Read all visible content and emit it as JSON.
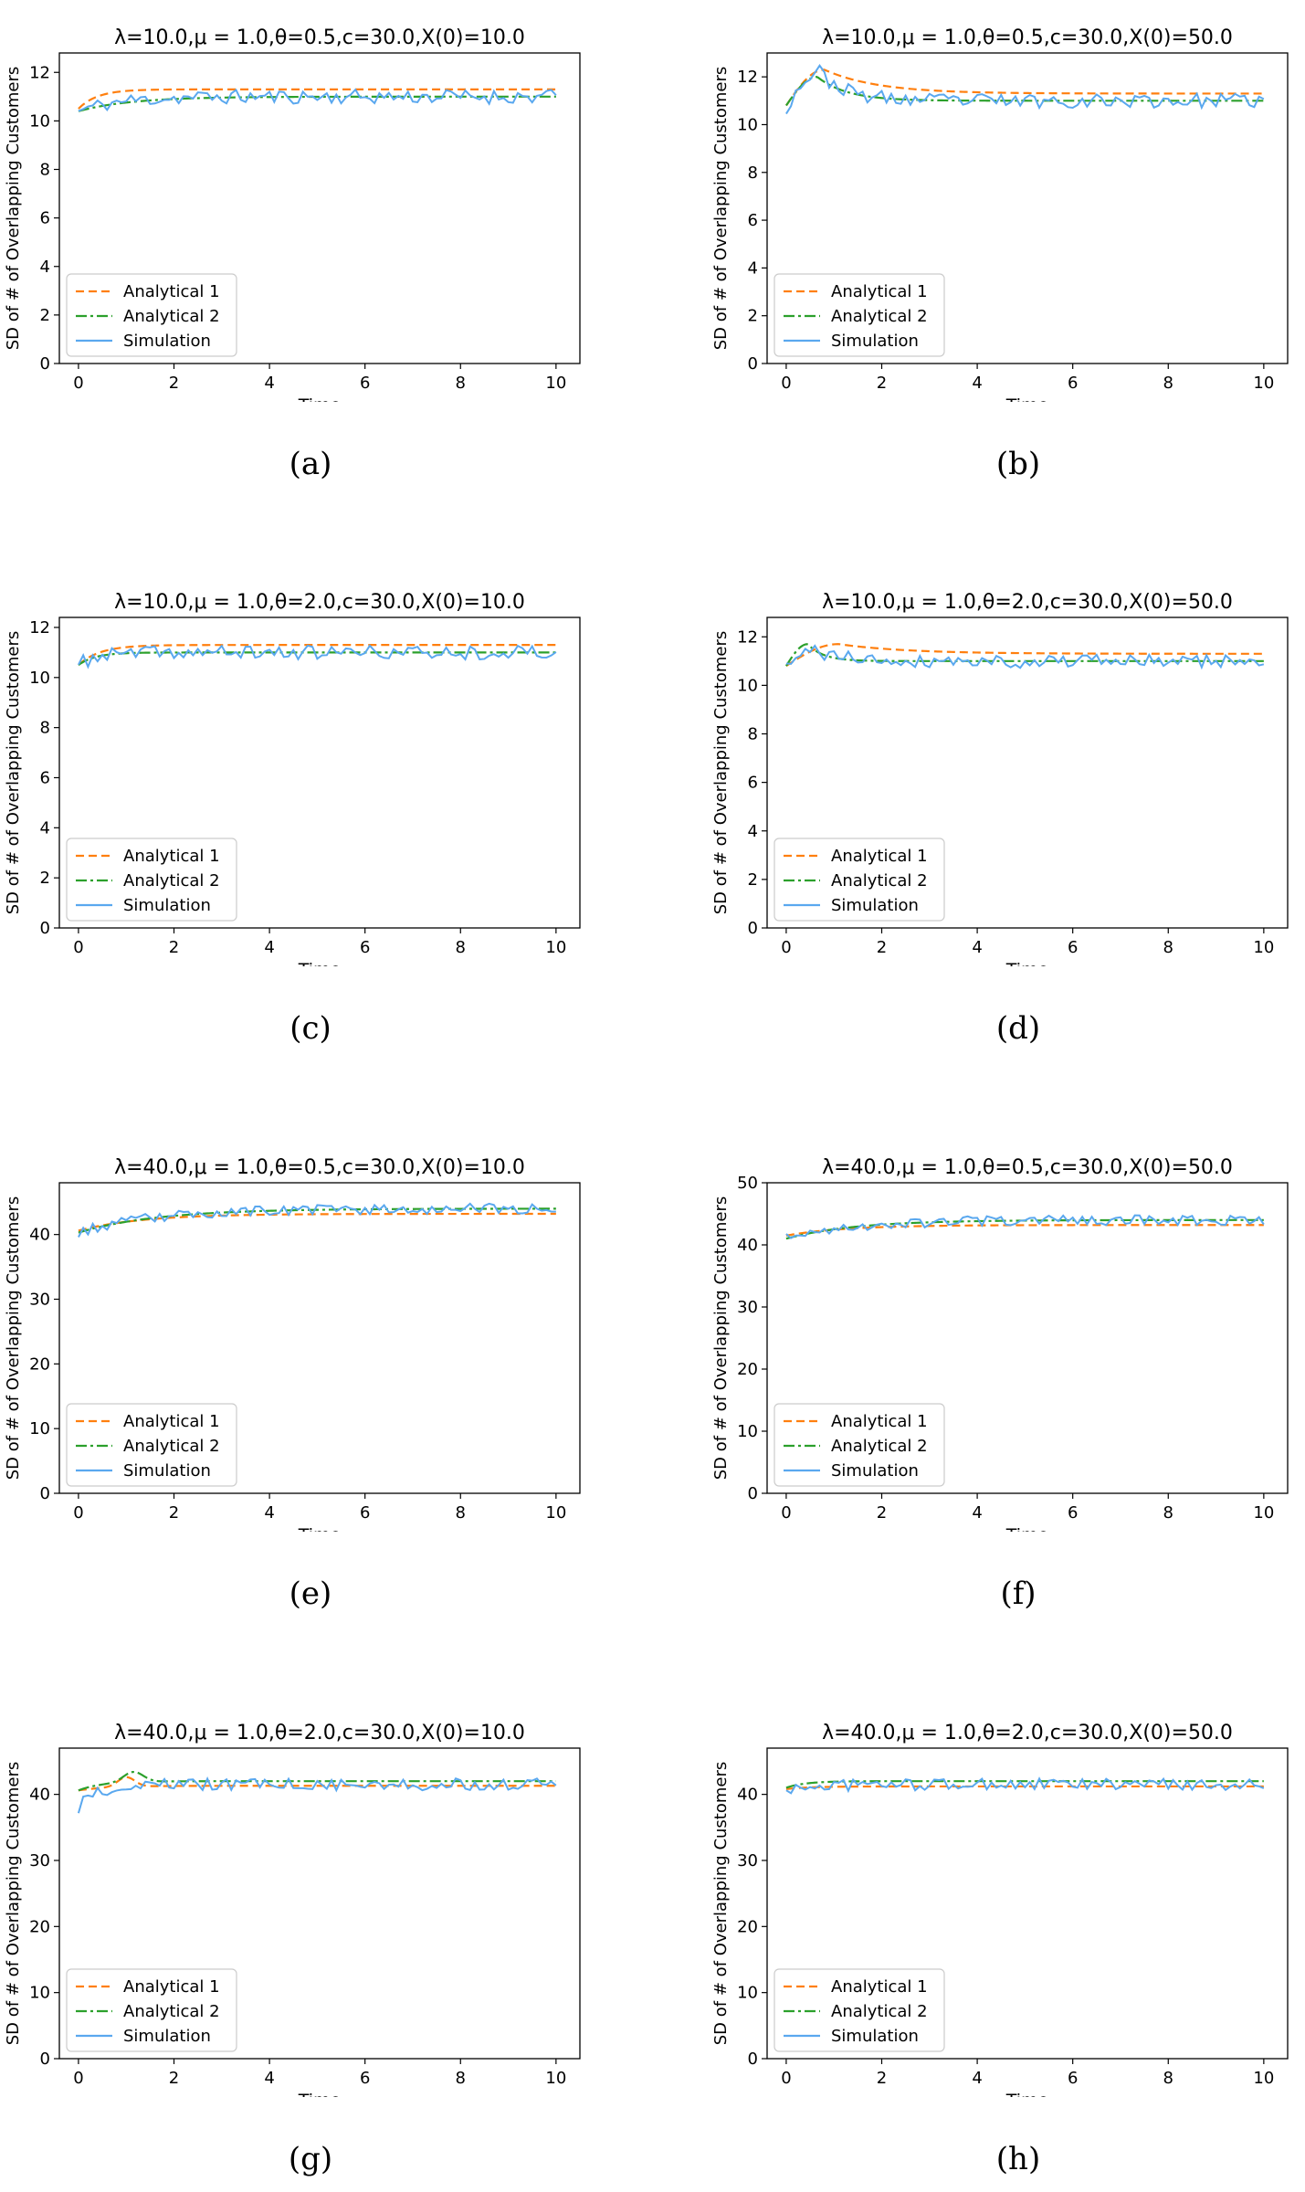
{
  "colors": {
    "analytical1": "#ff7f0e",
    "analytical2": "#2ca02c",
    "simulation": "#5aa8ef",
    "frame": "#000000"
  },
  "chart_data": [
    {
      "type": "line",
      "caption": "(a)",
      "title": "λ=10.0,μ = 1.0,θ=0.5,c=30.0,X(0)=10.0",
      "xlabel": "Time",
      "ylabel": "SD of # of Overlapping Customers",
      "xlim": [
        -0.4,
        10.5
      ],
      "ylim": [
        0,
        12.8
      ],
      "xticks": [
        0,
        2,
        4,
        6,
        8,
        10
      ],
      "yticks": [
        0,
        2,
        4,
        6,
        8,
        10,
        12
      ],
      "grid": false,
      "legend": "lower-left",
      "series": [
        {
          "name": "Analytical 1",
          "style": "dashed",
          "start": 10.5,
          "end": 11.3,
          "rate": 2.5
        },
        {
          "name": "Analytical 2",
          "style": "dashdot",
          "start": 10.4,
          "end": 11.0,
          "rate": 0.9
        },
        {
          "name": "Simulation",
          "style": "solid",
          "start": 10.4,
          "end": 11.0,
          "rate": 1.2,
          "noise": 0.3,
          "seed": 11
        }
      ]
    },
    {
      "type": "line",
      "caption": "(b)",
      "title": "λ=10.0,μ = 1.0,θ=0.5,c=30.0,X(0)=50.0",
      "xlabel": "Time",
      "ylabel": "SD of # of Overlapping Customers",
      "xlim": [
        -0.4,
        10.5
      ],
      "ylim": [
        0,
        13.0
      ],
      "xticks": [
        0,
        2,
        4,
        6,
        8,
        10
      ],
      "yticks": [
        0,
        2,
        4,
        6,
        8,
        10,
        12
      ],
      "grid": false,
      "legend": "lower-left",
      "series": [
        {
          "name": "Analytical 1",
          "style": "dashed",
          "start": 10.8,
          "end": 11.3,
          "peak_t": 0.8,
          "peak_v": 12.3,
          "decay": 0.9
        },
        {
          "name": "Analytical 2",
          "style": "dashdot",
          "start": 10.8,
          "end": 11.0,
          "peak_t": 0.65,
          "peak_v": 12.0,
          "decay": 1.6
        },
        {
          "name": "Simulation",
          "style": "solid",
          "start": 10.7,
          "end": 11.0,
          "peak_t": 0.7,
          "peak_v": 12.2,
          "decay": 1.8,
          "noise": 0.3,
          "seed": 23
        }
      ]
    },
    {
      "type": "line",
      "caption": "(c)",
      "title": "λ=10.0,μ = 1.0,θ=2.0,c=30.0,X(0)=10.0",
      "xlabel": "Time",
      "ylabel": "SD of # of Overlapping Customers",
      "xlim": [
        -0.4,
        10.5
      ],
      "ylim": [
        0,
        12.4
      ],
      "xticks": [
        0,
        2,
        4,
        6,
        8,
        10
      ],
      "yticks": [
        0,
        2,
        4,
        6,
        8,
        10,
        12
      ],
      "grid": false,
      "legend": "lower-left",
      "series": [
        {
          "name": "Analytical 1",
          "style": "dashed",
          "start": 10.5,
          "end": 11.3,
          "rate": 2.2
        },
        {
          "name": "Analytical 2",
          "style": "dashdot",
          "start": 10.5,
          "end": 11.0,
          "rate": 2.8
        },
        {
          "name": "Simulation",
          "style": "solid",
          "start": 10.5,
          "end": 11.0,
          "rate": 2.5,
          "noise": 0.28,
          "seed": 37
        }
      ]
    },
    {
      "type": "line",
      "caption": "(d)",
      "title": "λ=10.0,μ = 1.0,θ=2.0,c=30.0,X(0)=50.0",
      "xlabel": "Time",
      "ylabel": "SD of # of Overlapping Customers",
      "xlim": [
        -0.4,
        10.5
      ],
      "ylim": [
        0,
        12.8
      ],
      "xticks": [
        0,
        2,
        4,
        6,
        8,
        10
      ],
      "yticks": [
        0,
        2,
        4,
        6,
        8,
        10,
        12
      ],
      "grid": false,
      "legend": "lower-left",
      "series": [
        {
          "name": "Analytical 1",
          "style": "dashed",
          "start": 10.8,
          "end": 11.3,
          "peak_t": 1.1,
          "peak_v": 11.7,
          "decay": 0.7
        },
        {
          "name": "Analytical 2",
          "style": "dashdot",
          "start": 10.8,
          "end": 11.0,
          "peak_t": 0.45,
          "peak_v": 11.7,
          "decay": 3.0
        },
        {
          "name": "Simulation",
          "style": "solid",
          "start": 10.7,
          "end": 11.0,
          "peak_t": 0.6,
          "peak_v": 11.4,
          "decay": 1.5,
          "noise": 0.28,
          "seed": 41
        }
      ]
    },
    {
      "type": "line",
      "caption": "(e)",
      "title": "λ=40.0,μ = 1.0,θ=0.5,c=30.0,X(0)=10.0",
      "xlabel": "Time",
      "ylabel": "SD of # of Overlapping Customers",
      "xlim": [
        -0.4,
        10.5
      ],
      "ylim": [
        0,
        48.0
      ],
      "xticks": [
        0,
        2,
        4,
        6,
        8,
        10
      ],
      "yticks": [
        0,
        10,
        20,
        30,
        40
      ],
      "grid": false,
      "legend": "lower-left",
      "series": [
        {
          "name": "Analytical 1",
          "style": "dashed",
          "start": 40.6,
          "end": 43.2,
          "rate": 0.75
        },
        {
          "name": "Analytical 2",
          "style": "dashdot",
          "start": 40.3,
          "end": 44.0,
          "rate": 0.6
        },
        {
          "name": "Simulation",
          "style": "solid",
          "start": 40.3,
          "end": 44.0,
          "rate": 0.6,
          "noise": 0.8,
          "seed": 53
        }
      ]
    },
    {
      "type": "line",
      "caption": "(f)",
      "title": "λ=40.0,μ = 1.0,θ=0.5,c=30.0,X(0)=50.0",
      "xlabel": "Time",
      "ylabel": "SD of # of Overlapping Customers",
      "xlim": [
        -0.4,
        10.5
      ],
      "ylim": [
        0,
        50.0
      ],
      "xticks": [
        0,
        2,
        4,
        6,
        8,
        10
      ],
      "yticks": [
        0,
        10,
        20,
        30,
        40,
        50
      ],
      "grid": false,
      "legend": "lower-left",
      "series": [
        {
          "name": "Analytical 1",
          "style": "dashed",
          "start": 41.5,
          "end": 43.2,
          "rate": 0.8
        },
        {
          "name": "Analytical 2",
          "style": "dashdot",
          "start": 41.0,
          "end": 44.0,
          "rate": 0.7
        },
        {
          "name": "Simulation",
          "style": "solid",
          "start": 41.0,
          "end": 44.0,
          "rate": 0.7,
          "noise": 0.8,
          "seed": 67
        }
      ]
    },
    {
      "type": "line",
      "caption": "(g)",
      "title": "λ=40.0,μ = 1.0,θ=2.0,c=30.0,X(0)=10.0",
      "xlabel": "Time",
      "ylabel": "SD of # of Overlapping Customers",
      "xlim": [
        -0.4,
        10.5
      ],
      "ylim": [
        0,
        47.0
      ],
      "xticks": [
        0,
        2,
        4,
        6,
        8,
        10
      ],
      "yticks": [
        0,
        10,
        20,
        30,
        40
      ],
      "grid": false,
      "legend": "lower-left",
      "series": [
        {
          "name": "Analytical 1",
          "style": "dashed",
          "start": 40.6,
          "end": 41.3,
          "rate": 1.5,
          "peak_t": 1.0,
          "peak_v": 42.6,
          "decay": 4.0
        },
        {
          "name": "Analytical 2",
          "style": "dashdot",
          "start": 40.6,
          "end": 42.0,
          "rate": 2.0,
          "peak_t": 1.15,
          "peak_v": 43.4,
          "decay": 3.5
        },
        {
          "name": "Simulation",
          "style": "solid",
          "start": 38.0,
          "end": 41.5,
          "rate": 2.5,
          "noise": 0.9,
          "seed": 79
        }
      ]
    },
    {
      "type": "line",
      "caption": "(h)",
      "title": "λ=40.0,μ = 1.0,θ=2.0,c=30.0,X(0)=50.0",
      "xlabel": "Time",
      "ylabel": "SD of # of Overlapping Customers",
      "xlim": [
        -0.4,
        10.5
      ],
      "ylim": [
        0,
        47.0
      ],
      "xticks": [
        0,
        2,
        4,
        6,
        8,
        10
      ],
      "yticks": [
        0,
        10,
        20,
        30,
        40
      ],
      "grid": false,
      "legend": "lower-left",
      "series": [
        {
          "name": "Analytical 1",
          "style": "dashed",
          "start": 40.8,
          "end": 41.2,
          "rate": 2.0
        },
        {
          "name": "Analytical 2",
          "style": "dashdot",
          "start": 41.0,
          "end": 42.0,
          "rate": 2.5
        },
        {
          "name": "Simulation",
          "style": "solid",
          "start": 40.5,
          "end": 41.5,
          "rate": 2.0,
          "noise": 0.9,
          "seed": 97
        }
      ]
    }
  ]
}
